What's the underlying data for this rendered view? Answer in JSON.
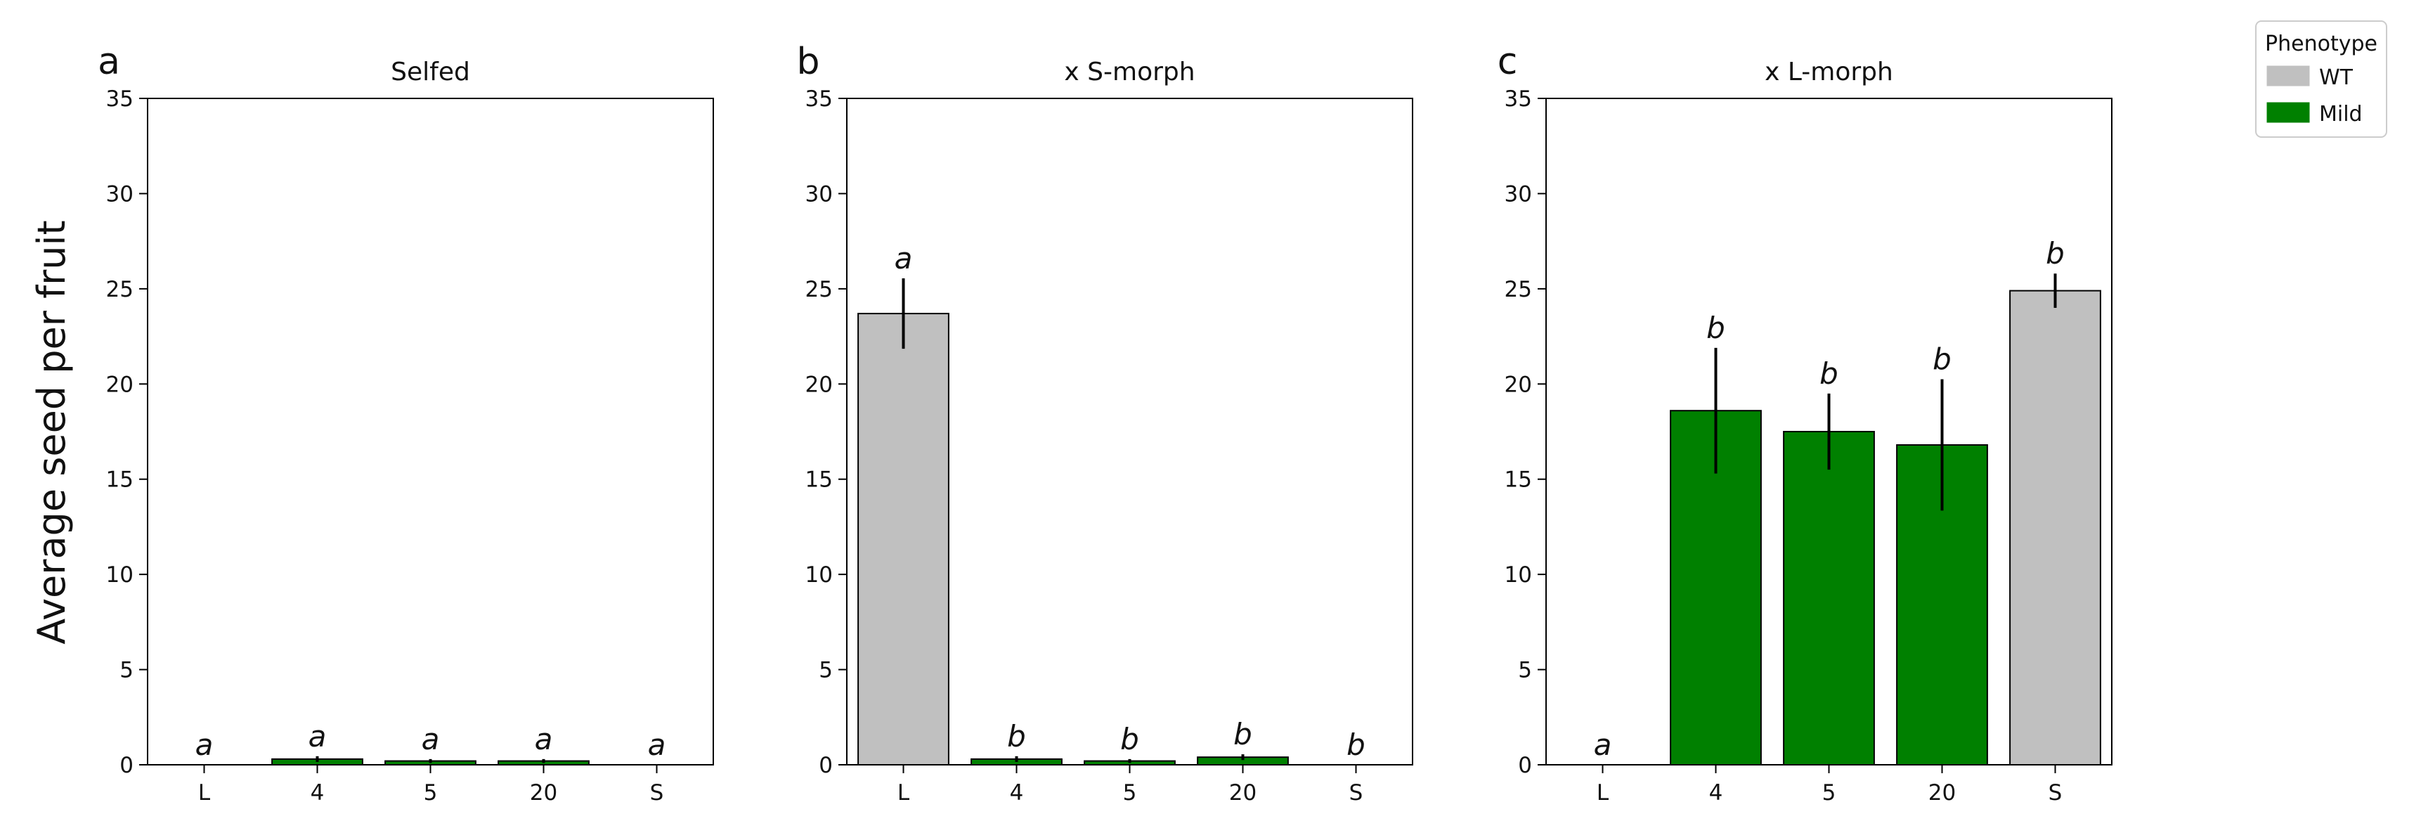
{
  "y_axis_label": "Average seed per fruit",
  "legend": {
    "title": "Phenotype",
    "entries": [
      {
        "label": "WT",
        "color": "#c0c0c0"
      },
      {
        "label": "Mild",
        "color": "#008000"
      }
    ]
  },
  "chart_data": [
    {
      "type": "bar",
      "panel_label": "a",
      "title": "Selfed",
      "categories": [
        "L",
        "4",
        "5",
        "20",
        "S"
      ],
      "values": [
        0,
        0.3,
        0.2,
        0.2,
        0
      ],
      "errors": [
        0,
        0.15,
        0.1,
        0.1,
        0
      ],
      "phenotype": [
        "WT",
        "Mild",
        "Mild",
        "Mild",
        "WT"
      ],
      "significance": [
        "a",
        "a",
        "a",
        "a",
        "a"
      ],
      "ylim": [
        0,
        35
      ],
      "yticks": [
        0,
        5,
        10,
        15,
        20,
        25,
        30,
        35
      ]
    },
    {
      "type": "bar",
      "panel_label": "b",
      "title": "x S-morph",
      "categories": [
        "L",
        "4",
        "5",
        "20",
        "S"
      ],
      "values": [
        23.7,
        0.3,
        0.2,
        0.4,
        0
      ],
      "errors": [
        1.85,
        0.15,
        0.1,
        0.15,
        0
      ],
      "phenotype": [
        "WT",
        "Mild",
        "Mild",
        "Mild",
        "WT"
      ],
      "significance": [
        "a",
        "b",
        "b",
        "b",
        "b"
      ],
      "ylim": [
        0,
        35
      ],
      "yticks": [
        0,
        5,
        10,
        15,
        20,
        25,
        30,
        35
      ]
    },
    {
      "type": "bar",
      "panel_label": "c",
      "title": "x L-morph",
      "categories": [
        "L",
        "4",
        "5",
        "20",
        "S"
      ],
      "values": [
        0,
        18.6,
        17.5,
        16.8,
        24.9
      ],
      "errors": [
        0,
        3.3,
        2.0,
        3.45,
        0.9
      ],
      "phenotype": [
        "WT",
        "Mild",
        "Mild",
        "Mild",
        "WT"
      ],
      "significance": [
        "a",
        "b",
        "b",
        "b",
        "b"
      ],
      "ylim": [
        0,
        35
      ],
      "yticks": [
        0,
        5,
        10,
        15,
        20,
        25,
        30,
        35
      ]
    }
  ]
}
